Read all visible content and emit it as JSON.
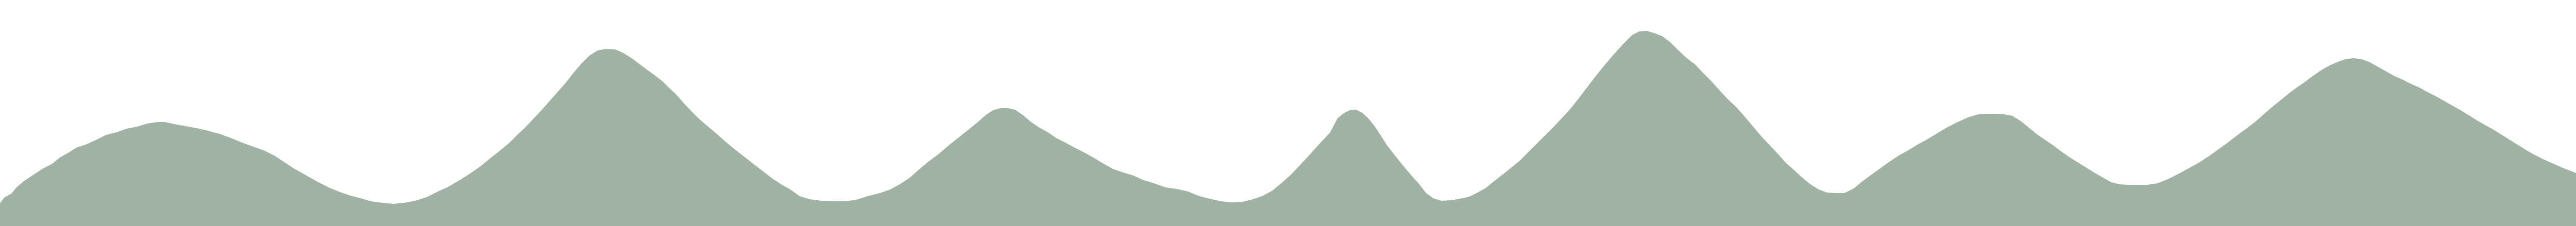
{
  "graphic": {
    "subject": "mountain-range-silhouette",
    "fill_color": "#A0B2A3",
    "background_color": "#FFFFFF"
  }
}
